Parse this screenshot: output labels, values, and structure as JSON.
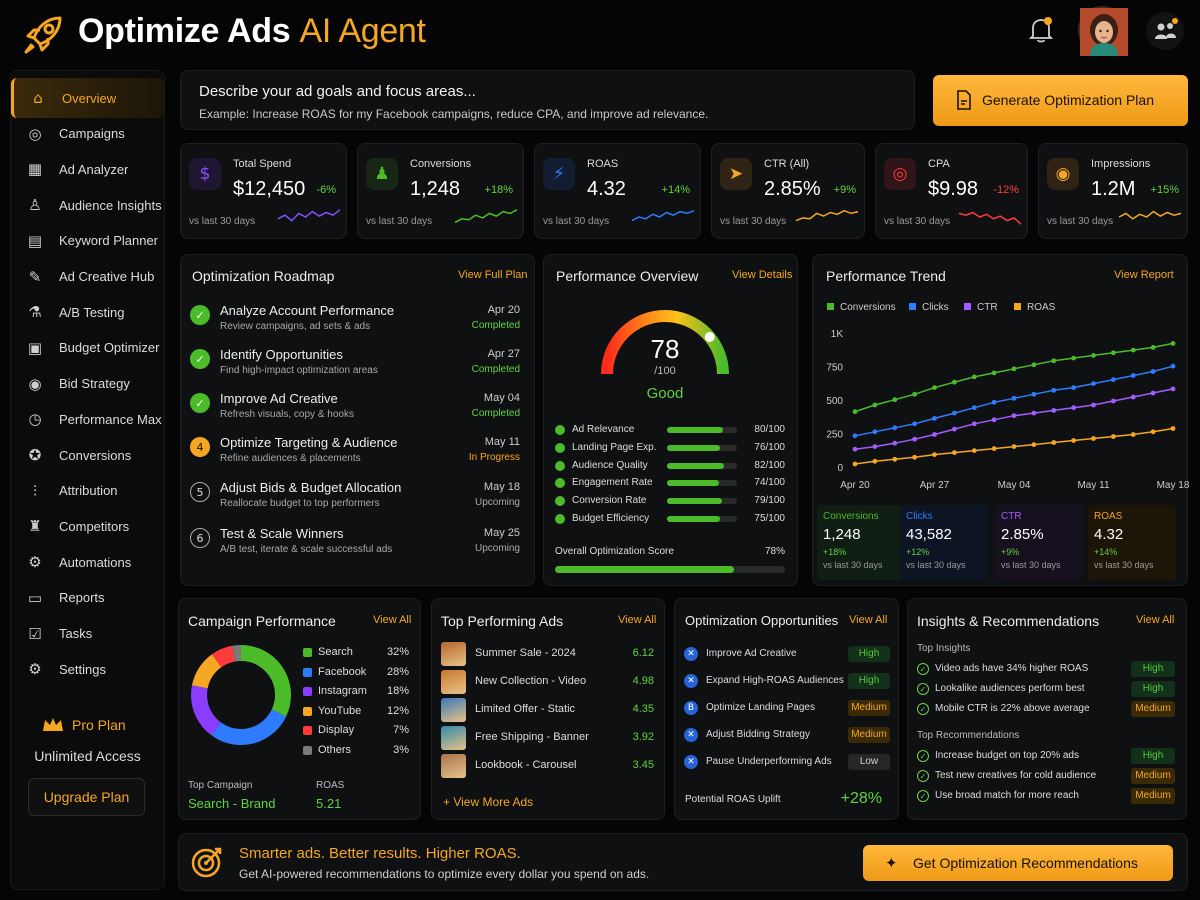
{
  "app": {
    "title_main": "Optimize Ads",
    "title_accent": "AI Agent",
    "logo_icon": "rocket-icon"
  },
  "header": {
    "bell_icon": "bell-icon",
    "users_icon": "users-icon"
  },
  "sidebar": {
    "items": [
      {
        "label": "Overview",
        "icon": "home-icon",
        "glyph": "⌂",
        "active": true
      },
      {
        "label": "Campaigns",
        "icon": "campaigns-icon",
        "glyph": "◎"
      },
      {
        "label": "Ad Analyzer",
        "icon": "analyzer-icon",
        "glyph": "▦"
      },
      {
        "label": "Audience Insights",
        "icon": "audience-icon",
        "glyph": "♙"
      },
      {
        "label": "Keyword Planner",
        "icon": "keyword-icon",
        "glyph": "▤"
      },
      {
        "label": "Ad Creative Hub",
        "icon": "creative-icon",
        "glyph": "✎"
      },
      {
        "label": "A/B Testing",
        "icon": "ab-testing-icon",
        "glyph": "⚗"
      },
      {
        "label": "Budget Optimizer",
        "icon": "budget-icon",
        "glyph": "▣"
      },
      {
        "label": "Bid Strategy",
        "icon": "bid-icon",
        "glyph": "◉"
      },
      {
        "label": "Performance Max",
        "icon": "performance-icon",
        "glyph": "◷"
      },
      {
        "label": "Conversions",
        "icon": "conversions-icon",
        "glyph": "✪"
      },
      {
        "label": "Attribution",
        "icon": "attribution-icon",
        "glyph": "⫶"
      },
      {
        "label": "Competitors",
        "icon": "competitors-icon",
        "glyph": "♜"
      },
      {
        "label": "Automations",
        "icon": "automation-icon",
        "glyph": "⚙"
      },
      {
        "label": "Reports",
        "icon": "reports-icon",
        "glyph": "▭"
      },
      {
        "label": "Tasks",
        "icon": "tasks-icon",
        "glyph": "☑"
      },
      {
        "label": "Settings",
        "icon": "settings-icon",
        "glyph": "⚙"
      }
    ],
    "pro_label": "Pro Plan",
    "pro_access": "Unlimited Access",
    "upgrade_label": "Upgrade Plan"
  },
  "prompt": {
    "placeholder": "Describe your ad goals and focus areas...",
    "example": "Example: Increase ROAS for my Facebook campaigns, reduce CPA, and improve ad relevance.",
    "button_label": "Generate Optimization Plan"
  },
  "kpis": [
    {
      "label": "Total Spend",
      "value": "$12,450",
      "delta": "-6%",
      "sub": "vs last 30 days",
      "icon": "dollar-icon",
      "glyph": "$",
      "color": "#8a4dff",
      "trend": "#8a4dff"
    },
    {
      "label": "Conversions",
      "value": "1,248",
      "delta": "+18%",
      "sub": "vs last 30 days",
      "icon": "users-icon",
      "glyph": "♟",
      "color": "#4cbb2a",
      "trend": "#4cbb2a"
    },
    {
      "label": "ROAS",
      "value": "4.32",
      "delta": "+14%",
      "sub": "vs last 30 days",
      "icon": "roas-icon",
      "glyph": "⚡",
      "color": "#2f7bff",
      "trend": "#2f7bff"
    },
    {
      "label": "CTR (All)",
      "value": "2.85%",
      "delta": "+9%",
      "sub": "vs last 30 days",
      "icon": "cursor-icon",
      "glyph": "➤",
      "color": "#f5a623",
      "trend": "#f5a623"
    },
    {
      "label": "CPA",
      "value": "$9.98",
      "delta": "-12%",
      "sub": "vs last 30 days",
      "icon": "target-icon",
      "glyph": "◎",
      "color": "#ff3b3b",
      "trend": "#ff3b3b"
    },
    {
      "label": "Impressions",
      "value": "1.2M",
      "delta": "+15%",
      "sub": "vs last 30 days",
      "icon": "eye-icon",
      "glyph": "◉",
      "color": "#f5a623",
      "trend": "#f5a623"
    }
  ],
  "roadmap": {
    "title": "Optimization Roadmap",
    "link": "View Full Plan",
    "steps": [
      {
        "n": "✓",
        "title": "Analyze Account Performance",
        "desc": "Review campaigns, ad sets & ads",
        "date": "Apr 20",
        "status": "Completed",
        "state": "done"
      },
      {
        "n": "✓",
        "title": "Identify Opportunities",
        "desc": "Find high-impact optimization areas",
        "date": "Apr 27",
        "status": "Completed",
        "state": "done"
      },
      {
        "n": "✓",
        "title": "Improve Ad Creative",
        "desc": "Refresh visuals, copy & hooks",
        "date": "May 04",
        "status": "Completed",
        "state": "done"
      },
      {
        "n": "4",
        "title": "Optimize Targeting & Audience",
        "desc": "Refine audiences & placements",
        "date": "May 11",
        "status": "In Progress",
        "state": "progress"
      },
      {
        "n": "5",
        "title": "Adjust Bids & Budget Allocation",
        "desc": "Reallocate budget to top performers",
        "date": "May 18",
        "status": "Upcoming",
        "state": "upcoming"
      },
      {
        "n": "6",
        "title": "Test & Scale Winners",
        "desc": "A/B test, iterate & scale successful ads",
        "date": "May 25",
        "status": "Upcoming",
        "state": "upcoming"
      }
    ]
  },
  "overview": {
    "title": "Performance Overview",
    "link": "View Details",
    "score": "78",
    "score_max": "/100",
    "score_value": 78,
    "rating": "Good",
    "metrics": [
      {
        "label": "Ad Relevance",
        "value": "80/100",
        "pct": 80
      },
      {
        "label": "Landing Page Exp.",
        "value": "76/100",
        "pct": 76
      },
      {
        "label": "Audience Quality",
        "value": "82/100",
        "pct": 82
      },
      {
        "label": "Engagement Rate",
        "value": "74/100",
        "pct": 74
      },
      {
        "label": "Conversion Rate",
        "value": "79/100",
        "pct": 79
      },
      {
        "label": "Budget Efficiency",
        "value": "75/100",
        "pct": 75
      }
    ],
    "overall_label": "Overall Optimization Score",
    "overall_value": "78%",
    "overall_pct": 78
  },
  "trend": {
    "title": "Performance Trend",
    "link": "View Report",
    "stats": [
      {
        "label": "Conversions",
        "value": "1,248",
        "delta": "+18%",
        "sub": "vs last 30 days",
        "color": "#4cbb2a",
        "bg": "#0f1d12"
      },
      {
        "label": "Clicks",
        "value": "43,582",
        "delta": "+12%",
        "sub": "vs last 30 days",
        "color": "#2f7bff",
        "bg": "#0d1524"
      },
      {
        "label": "CTR",
        "value": "2.85%",
        "delta": "+9%",
        "sub": "vs last 30 days",
        "color": "#a35cff",
        "bg": "#17101f"
      },
      {
        "label": "ROAS",
        "value": "4.32",
        "delta": "+14%",
        "sub": "vs last 30 days",
        "color": "#f5a623",
        "bg": "#1d1608"
      }
    ]
  },
  "chart_data": {
    "type": "line",
    "title": "Performance Trend",
    "x": [
      "Apr 20",
      "Apr 22",
      "Apr 24",
      "Apr 26",
      "Apr 27",
      "Apr 29",
      "May 01",
      "May 03",
      "May 04",
      "May 06",
      "May 08",
      "May 10",
      "May 11",
      "May 13",
      "May 15",
      "May 17",
      "May 18"
    ],
    "x_ticks": [
      "Apr 20",
      "Apr 27",
      "May 04",
      "May 11",
      "May 18"
    ],
    "y_ticks": [
      "0",
      "250",
      "500",
      "750",
      "1K"
    ],
    "ylim": [
      0,
      1000
    ],
    "legend_position": "top-left",
    "grid": false,
    "series": [
      {
        "name": "Conversions",
        "color": "#4cbb2a",
        "values": [
          420,
          470,
          510,
          550,
          600,
          640,
          680,
          710,
          740,
          770,
          800,
          820,
          840,
          860,
          880,
          900,
          930
        ]
      },
      {
        "name": "Clicks",
        "color": "#2f7bff",
        "values": [
          240,
          270,
          300,
          330,
          370,
          410,
          450,
          490,
          520,
          550,
          580,
          600,
          630,
          660,
          690,
          720,
          760
        ]
      },
      {
        "name": "CTR",
        "color": "#a35cff",
        "values": [
          140,
          160,
          185,
          215,
          250,
          290,
          330,
          360,
          390,
          410,
          430,
          450,
          470,
          500,
          530,
          560,
          590
        ]
      },
      {
        "name": "ROAS",
        "color": "#f5a623",
        "values": [
          30,
          50,
          65,
          80,
          100,
          115,
          130,
          145,
          160,
          175,
          190,
          205,
          220,
          235,
          250,
          270,
          295
        ]
      }
    ]
  },
  "campaign": {
    "title": "Campaign Performance",
    "link": "View All",
    "channels": [
      {
        "name": "Search",
        "pct": "32%",
        "value": 32,
        "color": "#4cbb2a"
      },
      {
        "name": "Facebook",
        "pct": "28%",
        "value": 28,
        "color": "#2f7bff"
      },
      {
        "name": "Instagram",
        "pct": "18%",
        "value": 18,
        "color": "#8a3dff"
      },
      {
        "name": "YouTube",
        "pct": "12%",
        "value": 12,
        "color": "#f5a623"
      },
      {
        "name": "Display",
        "pct": "7%",
        "value": 7,
        "color": "#ff3b3b"
      },
      {
        "name": "Others",
        "pct": "3%",
        "value": 3,
        "color": "#7a7a7a"
      }
    ],
    "top_label": "Top Campaign",
    "top_value": "Search - Brand",
    "roas_label": "ROAS",
    "roas_value": "5.21"
  },
  "top_ads": {
    "title": "Top Performing Ads",
    "link": "View All",
    "items": [
      {
        "name": "Summer Sale - 2024",
        "value": "6.12",
        "color": "#b5652a"
      },
      {
        "name": "New Collection - Video",
        "value": "4.98",
        "color": "#c8782c"
      },
      {
        "name": "Limited Offer - Static",
        "value": "4.35",
        "color": "#3d78b8"
      },
      {
        "name": "Free Shipping - Banner",
        "value": "3.92",
        "color": "#2f8aa8"
      },
      {
        "name": "Lookbook - Carousel",
        "value": "3.45",
        "color": "#a8744e"
      }
    ],
    "more": "+ View More Ads"
  },
  "opportunities": {
    "title": "Optimization Opportunities",
    "link": "View All",
    "items": [
      {
        "name": "Improve Ad Creative",
        "level": "High",
        "cls": "high",
        "glyph": "✕"
      },
      {
        "name": "Expand High-ROAS Audiences",
        "level": "High",
        "cls": "high",
        "glyph": "✕"
      },
      {
        "name": "Optimize Landing Pages",
        "level": "Medium",
        "cls": "medium",
        "glyph": "B"
      },
      {
        "name": "Adjust Bidding Strategy",
        "level": "Medium",
        "cls": "medium",
        "glyph": "✕"
      },
      {
        "name": "Pause Underperforming Ads",
        "level": "Low",
        "cls": "low",
        "glyph": "✕"
      }
    ],
    "uplift_label": "Potential ROAS Uplift",
    "uplift_value": "+28%"
  },
  "insights": {
    "title": "Insights & Recommendations",
    "link": "View All",
    "top_label": "Top Insights",
    "top": [
      {
        "text": "Video ads have 34% higher ROAS",
        "level": "High",
        "cls": "high"
      },
      {
        "text": "Lookalike audiences perform best",
        "level": "High",
        "cls": "high"
      },
      {
        "text": "Mobile CTR is 22% above average",
        "level": "Medium",
        "cls": "medium"
      }
    ],
    "rec_label": "Top Recommendations",
    "recs": [
      {
        "text": "Increase budget on top 20% ads",
        "level": "High",
        "cls": "high"
      },
      {
        "text": "Test new creatives for cold audience",
        "level": "Medium",
        "cls": "medium"
      },
      {
        "text": "Use broad match for more reach",
        "level": "Medium",
        "cls": "medium"
      }
    ]
  },
  "footer": {
    "headline": "Smarter ads. Better results. Higher ROAS.",
    "sub": "Get AI-powered recommendations to optimize every dollar you spend on ads.",
    "button_label": "Get Optimization Recommendations"
  }
}
